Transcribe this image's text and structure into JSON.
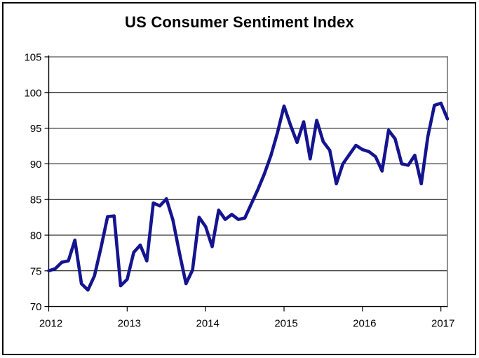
{
  "figure": {
    "title": "US Consumer Sentiment Index"
  },
  "colors": {
    "line": "#14148F",
    "gridline": "#000000",
    "axis": "#000000",
    "plot_border": "#848484",
    "outer_border": "#000000",
    "background": "#FFFFFF",
    "text": "#000000"
  },
  "chart_data": {
    "type": "line",
    "title": "US Consumer Sentiment Index",
    "xlabel": "",
    "ylabel": "",
    "ylim": [
      70,
      105
    ],
    "y_ticks": [
      70,
      75,
      80,
      85,
      90,
      95,
      100,
      105
    ],
    "x_tick_labels": [
      "2012",
      "2013",
      "2014",
      "2015",
      "2016",
      "2017"
    ],
    "x_tick_month_indices": [
      0,
      12,
      24,
      36,
      48,
      60
    ],
    "grid": "horizontal",
    "legend": "none",
    "series_name": "US Consumer Sentiment Index",
    "months": [
      "2012-01",
      "2012-02",
      "2012-03",
      "2012-04",
      "2012-05",
      "2012-06",
      "2012-07",
      "2012-08",
      "2012-09",
      "2012-10",
      "2012-11",
      "2012-12",
      "2013-01",
      "2013-02",
      "2013-03",
      "2013-04",
      "2013-05",
      "2013-06",
      "2013-07",
      "2013-08",
      "2013-09",
      "2013-10",
      "2013-11",
      "2013-12",
      "2014-01",
      "2014-02",
      "2014-03",
      "2014-04",
      "2014-05",
      "2014-06",
      "2014-07",
      "2014-08",
      "2014-09",
      "2014-10",
      "2014-11",
      "2014-12",
      "2015-01",
      "2015-02",
      "2015-03",
      "2015-04",
      "2015-05",
      "2015-06",
      "2015-07",
      "2015-08",
      "2015-09",
      "2015-10",
      "2015-11",
      "2015-12",
      "2016-01",
      "2016-02",
      "2016-03",
      "2016-04",
      "2016-05",
      "2016-06",
      "2016-07",
      "2016-08",
      "2016-09",
      "2016-10",
      "2016-11",
      "2016-12",
      "2017-01",
      "2017-02"
    ],
    "values": [
      75.0,
      75.3,
      76.2,
      76.4,
      79.3,
      73.2,
      72.3,
      74.3,
      78.3,
      82.6,
      82.7,
      72.9,
      73.8,
      77.6,
      78.6,
      76.4,
      84.5,
      84.1,
      85.1,
      82.1,
      77.5,
      73.2,
      75.1,
      82.5,
      81.2,
      78.4,
      83.5,
      82.2,
      82.9,
      82.2,
      82.4,
      84.4,
      86.4,
      88.6,
      91.2,
      94.4,
      98.1,
      95.4,
      93.0,
      95.9,
      90.7,
      96.1,
      93.1,
      91.9,
      87.2,
      90.0,
      91.3,
      92.6,
      92.0,
      91.7,
      91.0,
      89.0,
      94.7,
      93.5,
      90.0,
      89.8,
      91.2,
      87.2,
      93.8,
      98.2,
      98.5,
      96.3
    ]
  }
}
